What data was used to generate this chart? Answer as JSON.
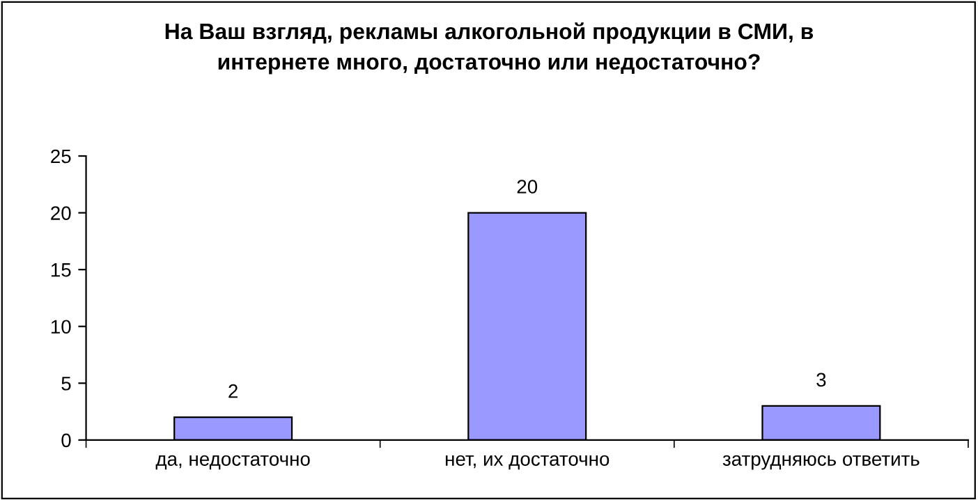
{
  "chart_data": {
    "type": "bar",
    "title": "На Ваш взгляд, рекламы алкогольной продукции в СМИ, в\nинтернете много, достаточно или недостаточно?",
    "categories": [
      "да, недостаточно",
      "нет, их достаточно",
      "затрудняюсь ответить"
    ],
    "values": [
      2,
      20,
      3
    ],
    "color": "#9999ff",
    "ylim": [
      0,
      25
    ],
    "yticks": [
      0,
      5,
      10,
      15,
      20,
      25
    ],
    "grid": false,
    "data_labels": true
  }
}
